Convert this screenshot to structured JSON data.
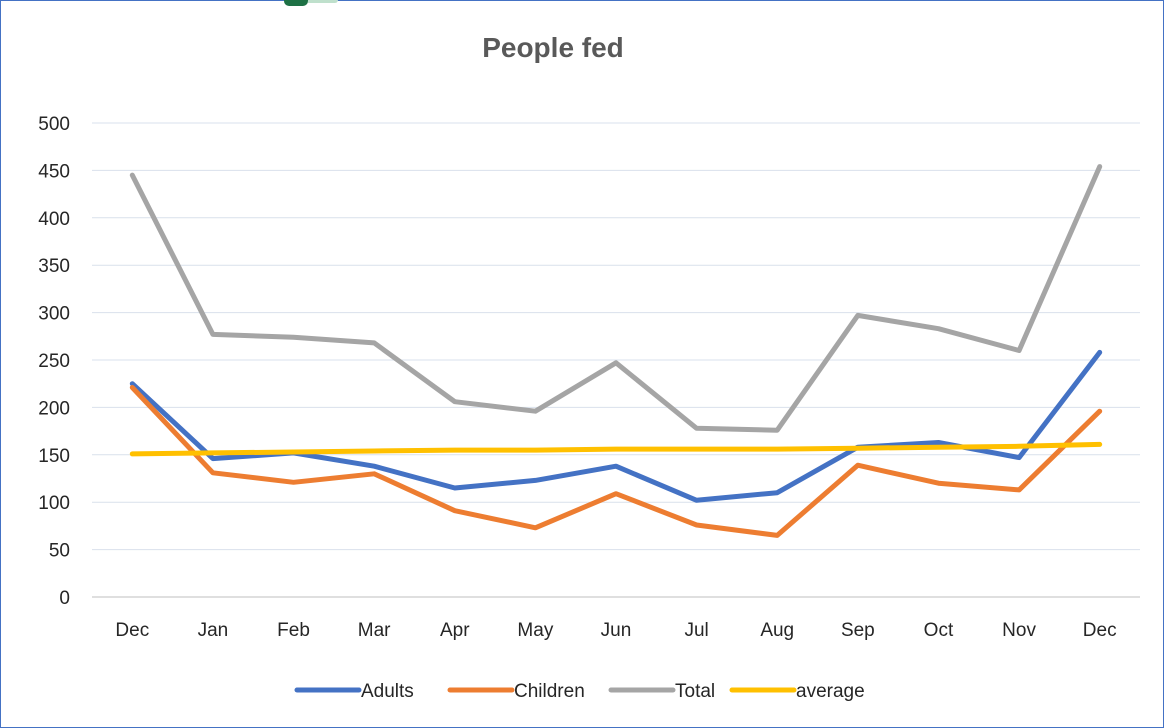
{
  "chart_data": {
    "type": "line",
    "title": "People fed",
    "categories": [
      "Dec",
      "Jan",
      "Feb",
      "Mar",
      "Apr",
      "May",
      "Jun",
      "Jul",
      "Aug",
      "Sep",
      "Oct",
      "Nov",
      "Dec"
    ],
    "ylim": [
      0,
      500
    ],
    "yticks": [
      "0",
      "50",
      "100",
      "150",
      "200",
      "250",
      "300",
      "350",
      "400",
      "450",
      "500"
    ],
    "grid": true,
    "legend_position": "bottom",
    "series": [
      {
        "name": "Adults",
        "color": "#4472c4",
        "values": [
          225,
          146,
          152,
          138,
          115,
          123,
          138,
          102,
          110,
          158,
          163,
          147,
          258
        ]
      },
      {
        "name": "Children",
        "color": "#ed7d31",
        "values": [
          221,
          131,
          121,
          130,
          91,
          73,
          109,
          76,
          65,
          139,
          120,
          113,
          196
        ]
      },
      {
        "name": "Total",
        "color": "#a5a5a5",
        "values": [
          445,
          277,
          274,
          268,
          206,
          196,
          247,
          178,
          176,
          297,
          283,
          260,
          454
        ]
      },
      {
        "name": "average",
        "color": "#ffc000",
        "values": [
          151,
          152,
          153,
          154,
          155,
          155,
          156,
          156,
          156,
          157,
          158,
          159,
          161
        ]
      }
    ]
  }
}
